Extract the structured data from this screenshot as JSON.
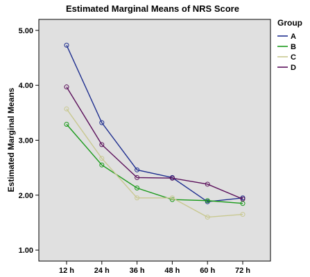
{
  "chart_data": {
    "type": "line",
    "title": "Estimated Marginal Means of NRS Score",
    "xlabel": "",
    "ylabel": "Estimated Marginal Means",
    "categories": [
      "12 h",
      "24 h",
      "36 h",
      "48 h",
      "60 h",
      "72 h"
    ],
    "ylim": [
      0.8,
      5.2
    ],
    "yticks": [
      1.0,
      2.0,
      3.0,
      4.0,
      5.0
    ],
    "ytick_labels": [
      "1.00",
      "2.00",
      "3.00",
      "4.00",
      "5.00"
    ],
    "grid": false,
    "background": "#e0e0e0",
    "legend": {
      "title": "Group",
      "placement": "right"
    },
    "series": [
      {
        "name": "A",
        "color": "#1f2f8f",
        "values": [
          4.73,
          3.32,
          2.46,
          2.32,
          1.88,
          1.95
        ]
      },
      {
        "name": "B",
        "color": "#1a9a1a",
        "values": [
          3.29,
          2.55,
          2.13,
          1.92,
          1.9,
          1.85
        ]
      },
      {
        "name": "C",
        "color": "#c8c890",
        "values": [
          3.57,
          2.67,
          1.95,
          1.95,
          1.6,
          1.65
        ]
      },
      {
        "name": "D",
        "color": "#5a0f5a",
        "values": [
          3.97,
          2.92,
          2.32,
          2.31,
          2.2,
          1.93
        ]
      }
    ]
  }
}
